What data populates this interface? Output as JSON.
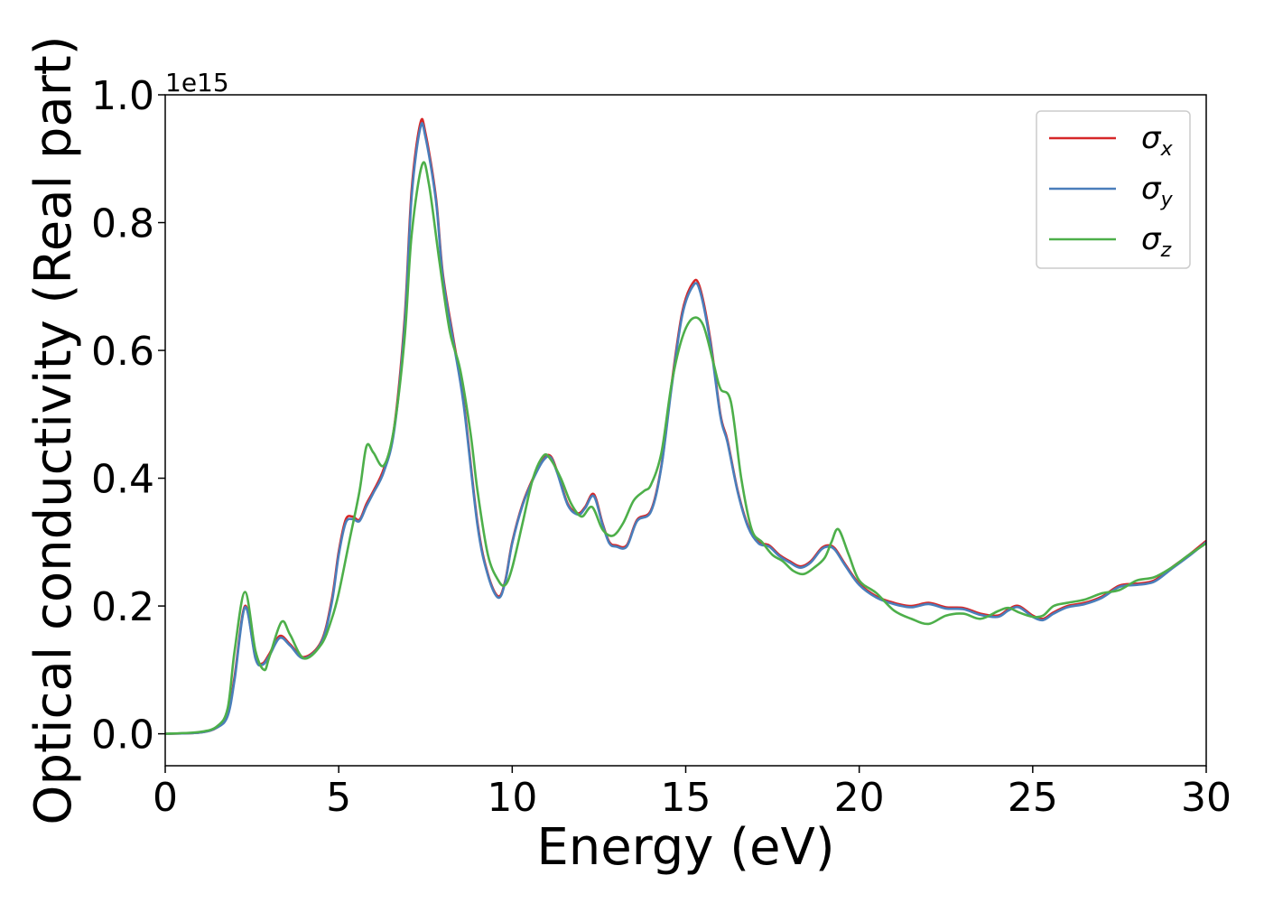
{
  "chart_data": {
    "type": "line",
    "xlabel": "Energy (eV)",
    "ylabel": "Optical conductivity (Real part)",
    "y_offset_label": "1e15",
    "xlim": [
      0,
      30
    ],
    "ylim": [
      -0.05,
      1.0
    ],
    "xticks": [
      0,
      5,
      10,
      15,
      20,
      25,
      30
    ],
    "xtick_labels": [
      "0",
      "5",
      "10",
      "15",
      "20",
      "25",
      "30"
    ],
    "yticks": [
      0.0,
      0.2,
      0.4,
      0.6,
      0.8,
      1.0
    ],
    "ytick_labels": [
      "0.0",
      "0.2",
      "0.4",
      "0.6",
      "0.8",
      "1.0"
    ],
    "grid": false,
    "legend_position": "top-right",
    "series": [
      {
        "name": "σx",
        "symbol": "σ",
        "subscript": "x",
        "color": "#d62728",
        "x": [
          0,
          1,
          1.5,
          1.8,
          2.0,
          2.3,
          2.6,
          2.8,
          3.0,
          3.3,
          3.6,
          4.0,
          4.5,
          4.8,
          5.0,
          5.2,
          5.4,
          5.6,
          5.8,
          6.0,
          6.3,
          6.6,
          6.9,
          7.1,
          7.35,
          7.5,
          7.8,
          8.0,
          8.3,
          8.6,
          9.0,
          9.3,
          9.6,
          9.8,
          10.0,
          10.3,
          10.6,
          10.9,
          11.1,
          11.3,
          11.6,
          11.9,
          12.1,
          12.35,
          12.6,
          12.8,
          13.0,
          13.3,
          13.6,
          14.0,
          14.3,
          14.6,
          14.9,
          15.2,
          15.4,
          15.7,
          16.0,
          16.2,
          16.5,
          16.8,
          17.1,
          17.4,
          17.7,
          18.0,
          18.3,
          18.6,
          18.9,
          19.1,
          19.3,
          19.6,
          20.0,
          20.5,
          21.0,
          21.5,
          22.0,
          22.5,
          23.0,
          23.5,
          24.0,
          24.3,
          24.6,
          25.0,
          25.3,
          25.6,
          26.0,
          26.5,
          27.0,
          27.5,
          28.0,
          28.5,
          29.0,
          29.5,
          30.0
        ],
        "y": [
          0.0,
          0.002,
          0.01,
          0.03,
          0.09,
          0.2,
          0.12,
          0.11,
          0.125,
          0.153,
          0.14,
          0.12,
          0.145,
          0.21,
          0.285,
          0.335,
          0.34,
          0.335,
          0.36,
          0.38,
          0.415,
          0.48,
          0.65,
          0.85,
          0.955,
          0.94,
          0.84,
          0.72,
          0.62,
          0.52,
          0.33,
          0.25,
          0.215,
          0.24,
          0.3,
          0.36,
          0.4,
          0.43,
          0.435,
          0.41,
          0.36,
          0.345,
          0.355,
          0.375,
          0.33,
          0.3,
          0.295,
          0.295,
          0.335,
          0.35,
          0.42,
          0.55,
          0.66,
          0.705,
          0.7,
          0.62,
          0.5,
          0.46,
          0.38,
          0.325,
          0.3,
          0.295,
          0.28,
          0.27,
          0.262,
          0.27,
          0.29,
          0.295,
          0.29,
          0.265,
          0.235,
          0.215,
          0.205,
          0.2,
          0.205,
          0.198,
          0.197,
          0.188,
          0.185,
          0.195,
          0.2,
          0.185,
          0.18,
          0.19,
          0.2,
          0.205,
          0.215,
          0.232,
          0.235,
          0.24,
          0.26,
          0.28,
          0.302
        ]
      },
      {
        "name": "σy",
        "symbol": "σ",
        "subscript": "y",
        "color": "#4a7ebb",
        "x": [
          0,
          1,
          1.5,
          1.8,
          2.0,
          2.3,
          2.6,
          2.8,
          3.0,
          3.3,
          3.6,
          4.0,
          4.5,
          4.8,
          5.0,
          5.2,
          5.4,
          5.6,
          5.8,
          6.0,
          6.3,
          6.6,
          6.9,
          7.1,
          7.35,
          7.5,
          7.8,
          8.0,
          8.3,
          8.6,
          9.0,
          9.3,
          9.6,
          9.8,
          10.0,
          10.3,
          10.6,
          10.9,
          11.1,
          11.3,
          11.6,
          11.9,
          12.1,
          12.35,
          12.6,
          12.8,
          13.0,
          13.3,
          13.6,
          14.0,
          14.3,
          14.6,
          14.9,
          15.2,
          15.4,
          15.7,
          16.0,
          16.2,
          16.5,
          16.8,
          17.1,
          17.4,
          17.7,
          18.0,
          18.3,
          18.6,
          18.9,
          19.1,
          19.3,
          19.6,
          20.0,
          20.5,
          21.0,
          21.5,
          22.0,
          22.5,
          23.0,
          23.5,
          24.0,
          24.3,
          24.6,
          25.0,
          25.3,
          25.6,
          26.0,
          26.5,
          27.0,
          27.5,
          28.0,
          28.5,
          29.0,
          29.5,
          30.0
        ],
        "y": [
          0.0,
          0.002,
          0.01,
          0.028,
          0.085,
          0.198,
          0.118,
          0.108,
          0.122,
          0.15,
          0.138,
          0.118,
          0.143,
          0.205,
          0.28,
          0.33,
          0.336,
          0.333,
          0.356,
          0.377,
          0.41,
          0.475,
          0.64,
          0.84,
          0.948,
          0.934,
          0.835,
          0.715,
          0.615,
          0.515,
          0.326,
          0.248,
          0.213,
          0.238,
          0.298,
          0.358,
          0.398,
          0.428,
          0.433,
          0.408,
          0.358,
          0.343,
          0.353,
          0.372,
          0.328,
          0.298,
          0.293,
          0.293,
          0.333,
          0.348,
          0.418,
          0.545,
          0.655,
          0.7,
          0.695,
          0.615,
          0.497,
          0.457,
          0.378,
          0.323,
          0.298,
          0.293,
          0.278,
          0.268,
          0.26,
          0.268,
          0.288,
          0.293,
          0.288,
          0.263,
          0.233,
          0.213,
          0.203,
          0.198,
          0.203,
          0.196,
          0.195,
          0.186,
          0.183,
          0.193,
          0.198,
          0.183,
          0.178,
          0.188,
          0.198,
          0.203,
          0.213,
          0.23,
          0.233,
          0.238,
          0.258,
          0.278,
          0.3
        ]
      },
      {
        "name": "σz",
        "symbol": "σ",
        "subscript": "z",
        "color": "#4daf4a",
        "x": [
          0,
          1,
          1.5,
          1.8,
          2.0,
          2.3,
          2.6,
          2.85,
          3.0,
          3.35,
          3.6,
          4.0,
          4.5,
          4.8,
          5.0,
          5.3,
          5.6,
          5.8,
          6.0,
          6.3,
          6.6,
          6.9,
          7.1,
          7.4,
          7.6,
          7.9,
          8.2,
          8.5,
          8.8,
          9.0,
          9.3,
          9.6,
          9.8,
          10.0,
          10.3,
          10.6,
          10.9,
          11.1,
          11.4,
          11.7,
          12.0,
          12.3,
          12.6,
          12.9,
          13.2,
          13.5,
          13.8,
          14.0,
          14.3,
          14.6,
          14.9,
          15.2,
          15.5,
          15.8,
          16.0,
          16.3,
          16.6,
          16.9,
          17.2,
          17.5,
          17.8,
          18.1,
          18.4,
          18.7,
          19.0,
          19.2,
          19.4,
          19.7,
          20.0,
          20.5,
          21.0,
          21.5,
          22.0,
          22.5,
          23.0,
          23.5,
          24.0,
          24.3,
          24.6,
          25.0,
          25.3,
          25.6,
          26.0,
          26.5,
          27.0,
          27.5,
          28.0,
          28.5,
          29.0,
          29.5,
          30.0
        ],
        "y": [
          0.0,
          0.003,
          0.012,
          0.04,
          0.13,
          0.222,
          0.13,
          0.1,
          0.12,
          0.175,
          0.155,
          0.118,
          0.14,
          0.18,
          0.22,
          0.3,
          0.38,
          0.45,
          0.44,
          0.42,
          0.48,
          0.62,
          0.78,
          0.89,
          0.86,
          0.74,
          0.63,
          0.57,
          0.47,
          0.38,
          0.28,
          0.24,
          0.233,
          0.26,
          0.33,
          0.4,
          0.435,
          0.43,
          0.4,
          0.36,
          0.34,
          0.355,
          0.32,
          0.31,
          0.33,
          0.365,
          0.38,
          0.39,
          0.44,
          0.55,
          0.62,
          0.65,
          0.64,
          0.58,
          0.54,
          0.52,
          0.4,
          0.32,
          0.3,
          0.28,
          0.27,
          0.255,
          0.25,
          0.26,
          0.275,
          0.3,
          0.32,
          0.28,
          0.24,
          0.22,
          0.193,
          0.18,
          0.172,
          0.185,
          0.188,
          0.18,
          0.192,
          0.197,
          0.19,
          0.183,
          0.185,
          0.2,
          0.205,
          0.21,
          0.22,
          0.225,
          0.24,
          0.245,
          0.26,
          0.28,
          0.298
        ]
      }
    ]
  }
}
